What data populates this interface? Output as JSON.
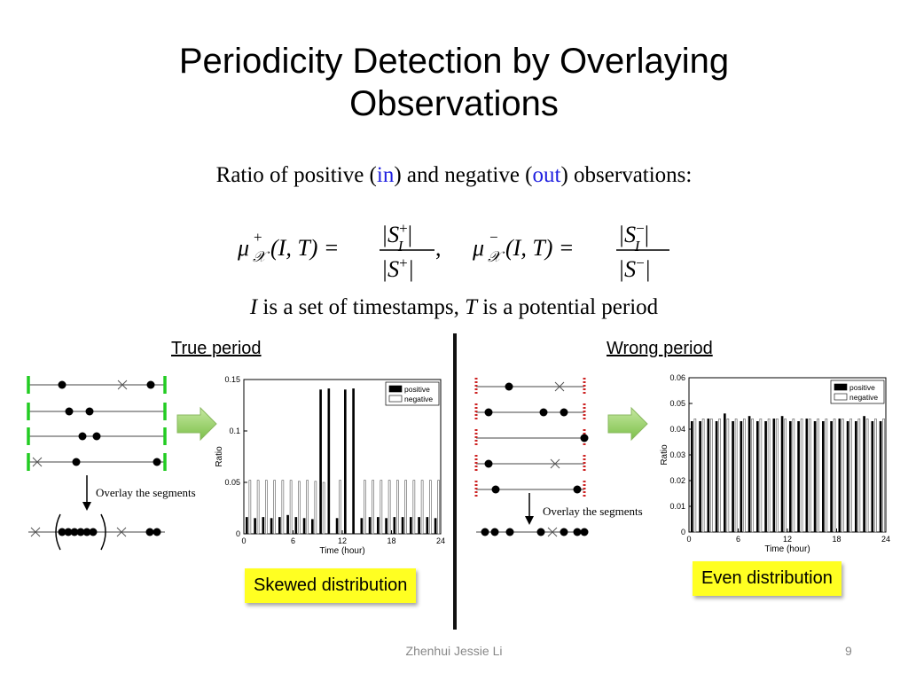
{
  "slide": {
    "title_line1": "Periodicity Detection by Overlaying",
    "title_line2": "Observations",
    "subtitle_pre": "Ratio of positive (",
    "subtitle_in": "in",
    "subtitle_mid": ") and negative (",
    "subtitle_out": "out",
    "subtitle_post": ") observations:",
    "definition_I": "I",
    "definition_text1": " is a set of timestamps, ",
    "definition_T": "T",
    "definition_text2": " is a potential period",
    "footer_author": "Zhenhui Jessie Li",
    "page_number": "9"
  },
  "formula": {
    "mu": "μ",
    "plus": "+",
    "minus": "−",
    "script_x": "𝒳",
    "args": "(I, T) =",
    "num_plus": "|S",
    "num_plus_sup": "+",
    "num_plus_sub": "I",
    "den_plus": "|S",
    "den_plus_sup": "+",
    "abs_close": "|",
    "comma": ","
  },
  "left_panel": {
    "heading": "True period",
    "overlay_label": "Overlay the segments",
    "callout": "Skewed distribution"
  },
  "right_panel": {
    "heading": "Wrong period",
    "overlay_label": "Overlay the segments",
    "callout": "Even distribution"
  },
  "colors": {
    "true_boundary": "#22cc22",
    "wrong_boundary": "#cc2222",
    "arrow_green": "#88cc55",
    "highlight": "#ffff22",
    "blue_text": "#1f1fe0"
  },
  "chart_data": [
    {
      "type": "bar",
      "xlabel": "Time (hour)",
      "ylabel": "Ratio",
      "ylim": [
        0,
        0.15
      ],
      "yticks": [
        "0",
        "0.05",
        "0.1",
        "0.15"
      ],
      "xticks": [
        "0",
        "6",
        "12",
        "18",
        "24"
      ],
      "legend": "top-right",
      "categories": [
        "0",
        "1",
        "2",
        "3",
        "4",
        "5",
        "6",
        "7",
        "8",
        "9",
        "10",
        "11",
        "12",
        "13",
        "14",
        "15",
        "16",
        "17",
        "18",
        "19",
        "20",
        "21",
        "22",
        "23"
      ],
      "series": [
        {
          "name": "positive",
          "color": "#000000",
          "values": [
            0.016,
            0.015,
            0.016,
            0.015,
            0.016,
            0.018,
            0.016,
            0.015,
            0.014,
            0.14,
            0.141,
            0.015,
            0.14,
            0.141,
            0.015,
            0.016,
            0.016,
            0.015,
            0.016,
            0.016,
            0.016,
            0.016,
            0.016,
            0.015
          ]
        },
        {
          "name": "negative",
          "color": "#ffffff",
          "values": [
            0.052,
            0.052,
            0.052,
            0.052,
            0.052,
            0.052,
            0.051,
            0.052,
            0.051,
            0.05,
            0.0,
            0.052,
            0.0,
            0.0,
            0.052,
            0.052,
            0.052,
            0.052,
            0.052,
            0.052,
            0.052,
            0.052,
            0.052,
            0.052
          ]
        }
      ]
    },
    {
      "type": "bar",
      "xlabel": "Time (hour)",
      "ylabel": "Ratio",
      "ylim": [
        0,
        0.06
      ],
      "yticks": [
        "0",
        "0.01",
        "0.02",
        "0.03",
        "0.04",
        "0.05",
        "0.06"
      ],
      "xticks": [
        "0",
        "6",
        "12",
        "18",
        "24"
      ],
      "legend": "top-right",
      "categories": [
        "0",
        "1",
        "2",
        "3",
        "4",
        "5",
        "6",
        "7",
        "8",
        "9",
        "10",
        "11",
        "12",
        "13",
        "14",
        "15",
        "16",
        "17",
        "18",
        "19",
        "20",
        "21",
        "22",
        "23"
      ],
      "series": [
        {
          "name": "positive",
          "color": "#000000",
          "values": [
            0.043,
            0.043,
            0.044,
            0.043,
            0.046,
            0.043,
            0.043,
            0.045,
            0.043,
            0.043,
            0.044,
            0.045,
            0.043,
            0.043,
            0.044,
            0.043,
            0.043,
            0.043,
            0.044,
            0.043,
            0.043,
            0.045,
            0.043,
            0.043
          ]
        },
        {
          "name": "negative",
          "color": "#ffffff",
          "values": [
            0.044,
            0.044,
            0.044,
            0.044,
            0.044,
            0.044,
            0.044,
            0.044,
            0.044,
            0.044,
            0.044,
            0.044,
            0.044,
            0.044,
            0.044,
            0.044,
            0.044,
            0.044,
            0.044,
            0.044,
            0.044,
            0.044,
            0.044,
            0.044
          ]
        }
      ]
    }
  ]
}
